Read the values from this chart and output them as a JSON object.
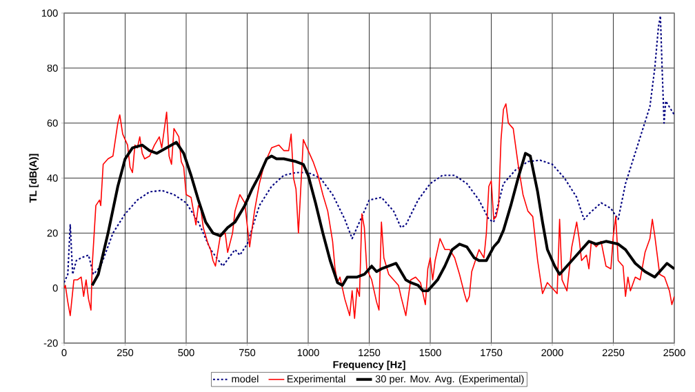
{
  "chart_data": {
    "type": "line",
    "xlabel": "Frequency [Hz]",
    "ylabel": "TL [dB(A)]",
    "xlim": [
      0,
      2500
    ],
    "ylim": [
      -20,
      100
    ],
    "xticks": [
      0,
      250,
      500,
      750,
      1000,
      1250,
      1500,
      1750,
      2000,
      2250,
      2500
    ],
    "yticks": [
      -20,
      0,
      20,
      40,
      60,
      80,
      100
    ],
    "grid": true,
    "legend": "bottom",
    "marker": "none",
    "series": [
      {
        "name": "model",
        "color": "#000080",
        "line_style": "dotted",
        "x": [
          0,
          15,
          25,
          35,
          50,
          70,
          100,
          120,
          150,
          200,
          250,
          300,
          350,
          400,
          450,
          500,
          550,
          600,
          650,
          700,
          720,
          750,
          800,
          850,
          900,
          950,
          1000,
          1050,
          1100,
          1150,
          1180,
          1200,
          1250,
          1300,
          1350,
          1380,
          1400,
          1450,
          1500,
          1550,
          1600,
          1650,
          1700,
          1740,
          1760,
          1800,
          1850,
          1900,
          1950,
          2000,
          2050,
          2100,
          2130,
          2150,
          2200,
          2240,
          2270,
          2300,
          2350,
          2400,
          2420,
          2435,
          2443,
          2450,
          2458,
          2465,
          2500
        ],
        "values": [
          2,
          5,
          23,
          5,
          10,
          11,
          12,
          5,
          8,
          20,
          27,
          32,
          35,
          35.5,
          34,
          31,
          24,
          14,
          8,
          14,
          12,
          16,
          30,
          37,
          41,
          42,
          42,
          40,
          34,
          25,
          18,
          22,
          32,
          33,
          28,
          22,
          23,
          32,
          38,
          41,
          41,
          38,
          32,
          25,
          24,
          38,
          43,
          46,
          46.5,
          45,
          40,
          33,
          25,
          27,
          31,
          29,
          25,
          38,
          52,
          66,
          80,
          95,
          99,
          80,
          60,
          68,
          63
        ]
      },
      {
        "name": "Experimental",
        "color": "#ff0000",
        "line_style": "solid",
        "x": [
          0,
          5,
          15,
          25,
          40,
          55,
          70,
          80,
          90,
          100,
          110,
          115,
          130,
          145,
          150,
          160,
          180,
          200,
          220,
          228,
          240,
          260,
          270,
          280,
          290,
          300,
          310,
          320,
          330,
          350,
          370,
          390,
          400,
          420,
          430,
          440,
          450,
          470,
          480,
          490,
          500,
          520,
          540,
          550,
          560,
          570,
          590,
          600,
          610,
          620,
          640,
          660,
          670,
          690,
          700,
          720,
          740,
          760,
          780,
          800,
          820,
          850,
          880,
          900,
          920,
          930,
          940,
          950,
          960,
          980,
          1000,
          1010,
          1020,
          1040,
          1060,
          1080,
          1100,
          1110,
          1120,
          1130,
          1150,
          1170,
          1180,
          1190,
          1200,
          1210,
          1220,
          1230,
          1240,
          1260,
          1280,
          1290,
          1300,
          1310,
          1320,
          1330,
          1350,
          1370,
          1380,
          1400,
          1420,
          1440,
          1460,
          1480,
          1490,
          1500,
          1510,
          1520,
          1540,
          1560,
          1580,
          1600,
          1620,
          1640,
          1650,
          1660,
          1670,
          1700,
          1720,
          1730,
          1740,
          1750,
          1760,
          1770,
          1780,
          1790,
          1800,
          1810,
          1820,
          1840,
          1860,
          1880,
          1900,
          1920,
          1940,
          1960,
          1980,
          2000,
          2020,
          2030,
          2040,
          2060,
          2080,
          2100,
          2110,
          2120,
          2140,
          2150,
          2160,
          2180,
          2200,
          2220,
          2240,
          2250,
          2260,
          2270,
          2290,
          2300,
          2310,
          2320,
          2340,
          2360,
          2380,
          2400,
          2410,
          2420,
          2440,
          2460,
          2480,
          2490,
          2500
        ],
        "values": [
          0,
          1,
          -5,
          -10,
          3,
          3,
          4,
          -3,
          3,
          -4,
          -8,
          8,
          30,
          32,
          30,
          45,
          47,
          48,
          60,
          63,
          56,
          52,
          44,
          42,
          52,
          51,
          55,
          49,
          47,
          48,
          52,
          55,
          51,
          64,
          48,
          45,
          58,
          55,
          46,
          44,
          34,
          33,
          23,
          30,
          29,
          22,
          16,
          14,
          10,
          8,
          19,
          20,
          13,
          20,
          28,
          34,
          31,
          15,
          28,
          38,
          45,
          51,
          52,
          50,
          50,
          56,
          40,
          36,
          20,
          54,
          50,
          48,
          46,
          41,
          34,
          28,
          17,
          7,
          2,
          4,
          -4,
          -10,
          -1,
          -11,
          0,
          -3,
          27,
          22,
          7,
          3,
          -5,
          -8,
          24,
          11,
          8,
          5,
          3,
          1,
          -3,
          -10,
          3,
          4,
          2,
          -6,
          7,
          11,
          3,
          10,
          18,
          14,
          14,
          11,
          5,
          -2,
          -5,
          -3,
          6,
          14,
          11,
          20,
          37,
          39,
          25,
          26,
          30,
          54,
          65,
          67,
          60,
          58,
          45,
          34,
          28,
          26,
          10,
          -2,
          2,
          0,
          -2,
          25,
          3,
          -1,
          15,
          24,
          18,
          10,
          12,
          7,
          17,
          15,
          17,
          8,
          7,
          19,
          26,
          10,
          8,
          -3,
          4,
          -1,
          4,
          3,
          13,
          18,
          25,
          19,
          5,
          4,
          -1,
          -6,
          -3
        ]
      },
      {
        "name": "30 per. Mov. Avg. (Experimental)",
        "color": "#000000",
        "line_style": "solid",
        "x": [
          115,
          140,
          180,
          220,
          250,
          280,
          320,
          350,
          380,
          420,
          460,
          490,
          520,
          550,
          580,
          610,
          640,
          670,
          700,
          740,
          770,
          800,
          830,
          850,
          870,
          900,
          950,
          980,
          1000,
          1030,
          1060,
          1090,
          1120,
          1140,
          1160,
          1200,
          1230,
          1250,
          1260,
          1280,
          1300,
          1330,
          1360,
          1400,
          1420,
          1450,
          1470,
          1490,
          1530,
          1560,
          1590,
          1620,
          1650,
          1680,
          1700,
          1730,
          1760,
          1780,
          1800,
          1830,
          1860,
          1890,
          1910,
          1940,
          1960,
          1980,
          2010,
          2030,
          2060,
          2090,
          2110,
          2150,
          2180,
          2220,
          2270,
          2300,
          2340,
          2380,
          2420,
          2450,
          2470,
          2500
        ],
        "values": [
          1,
          5,
          20,
          37,
          47,
          51,
          52,
          50,
          49,
          51,
          53,
          49,
          41,
          32,
          24,
          20,
          19,
          22,
          24,
          30,
          36,
          41,
          47,
          48,
          47,
          47,
          46,
          45,
          41,
          31,
          20,
          10,
          2,
          1,
          4,
          4,
          5,
          7,
          8,
          6,
          7,
          8,
          9,
          3,
          2,
          1,
          -1,
          -1,
          3,
          8,
          14,
          16,
          15,
          11,
          10,
          10,
          15,
          17,
          21,
          30,
          40,
          49,
          48,
          35,
          24,
          14,
          8,
          5,
          8,
          11,
          13,
          17,
          16,
          17,
          16,
          14,
          9,
          6,
          4,
          7,
          9,
          7
        ]
      }
    ]
  }
}
